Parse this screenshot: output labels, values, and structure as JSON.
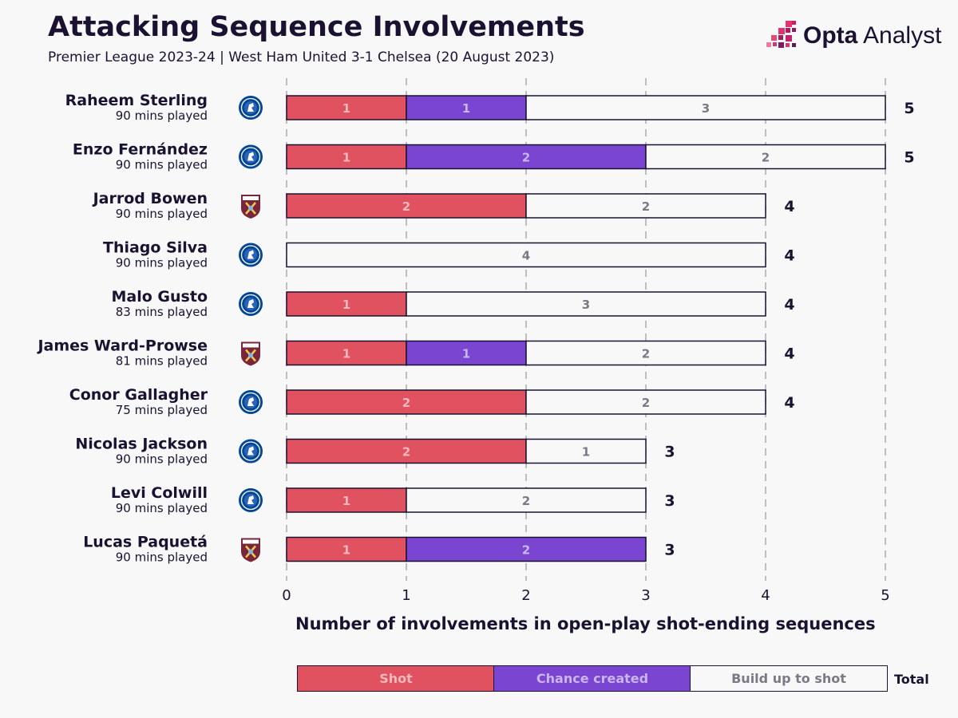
{
  "header": {
    "title": "Attacking Sequence Involvements",
    "subtitle": "Premier League 2023-24 | West Ham United 3-1 Chelsea (20 August 2023)",
    "brand_bold": "Opta",
    "brand_rest": " Analyst"
  },
  "colors": {
    "shot": "#e05260",
    "chance": "#7a45d0",
    "buildup": "#f8f8f8",
    "text_dark": "#1a1230",
    "label_light": "#f4b8bd",
    "label_chance": "#c9b6ee",
    "label_buildup": "#7a7a86",
    "chelsea": "#034694",
    "westham": "#7a263a"
  },
  "legend": {
    "shot": "Shot",
    "chance": "Chance created",
    "buildup": "Build up to shot",
    "total": "Total"
  },
  "chart_data": {
    "type": "bar",
    "orientation": "horizontal",
    "stacked": true,
    "xlabel": "Number of involvements in open-play shot-ending sequences",
    "xlim": [
      0,
      5
    ],
    "xticks": [
      0,
      1,
      2,
      3,
      4,
      5
    ],
    "grid": "vertical-dashed",
    "players": [
      {
        "name": "Raheem Sterling",
        "mins": "90 mins played",
        "team": "chelsea",
        "team_icon": "chelsea-badge-icon",
        "shot": 1,
        "chance": 1,
        "buildup": 3,
        "total": 5
      },
      {
        "name": "Enzo Fernández",
        "mins": "90 mins played",
        "team": "chelsea",
        "team_icon": "chelsea-badge-icon",
        "shot": 1,
        "chance": 2,
        "buildup": 2,
        "total": 5
      },
      {
        "name": "Jarrod Bowen",
        "mins": "90 mins played",
        "team": "westham",
        "team_icon": "west-ham-badge-icon",
        "shot": 2,
        "chance": 0,
        "buildup": 2,
        "total": 4
      },
      {
        "name": "Thiago Silva",
        "mins": "90 mins played",
        "team": "chelsea",
        "team_icon": "chelsea-badge-icon",
        "shot": 0,
        "chance": 0,
        "buildup": 4,
        "total": 4
      },
      {
        "name": "Malo Gusto",
        "mins": "83 mins played",
        "team": "chelsea",
        "team_icon": "chelsea-badge-icon",
        "shot": 1,
        "chance": 0,
        "buildup": 3,
        "total": 4
      },
      {
        "name": "James Ward-Prowse",
        "mins": "81 mins played",
        "team": "westham",
        "team_icon": "west-ham-badge-icon",
        "shot": 1,
        "chance": 1,
        "buildup": 2,
        "total": 4
      },
      {
        "name": "Conor Gallagher",
        "mins": "75 mins played",
        "team": "chelsea",
        "team_icon": "chelsea-badge-icon",
        "shot": 2,
        "chance": 0,
        "buildup": 2,
        "total": 4
      },
      {
        "name": "Nicolas Jackson",
        "mins": "90 mins played",
        "team": "chelsea",
        "team_icon": "chelsea-badge-icon",
        "shot": 2,
        "chance": 0,
        "buildup": 1,
        "total": 3
      },
      {
        "name": "Levi Colwill",
        "mins": "90 mins played",
        "team": "chelsea",
        "team_icon": "chelsea-badge-icon",
        "shot": 1,
        "chance": 0,
        "buildup": 2,
        "total": 3
      },
      {
        "name": "Lucas Paquetá",
        "mins": "90 mins played",
        "team": "westham",
        "team_icon": "west-ham-badge-icon",
        "shot": 1,
        "chance": 2,
        "buildup": 0,
        "total": 3
      }
    ]
  }
}
